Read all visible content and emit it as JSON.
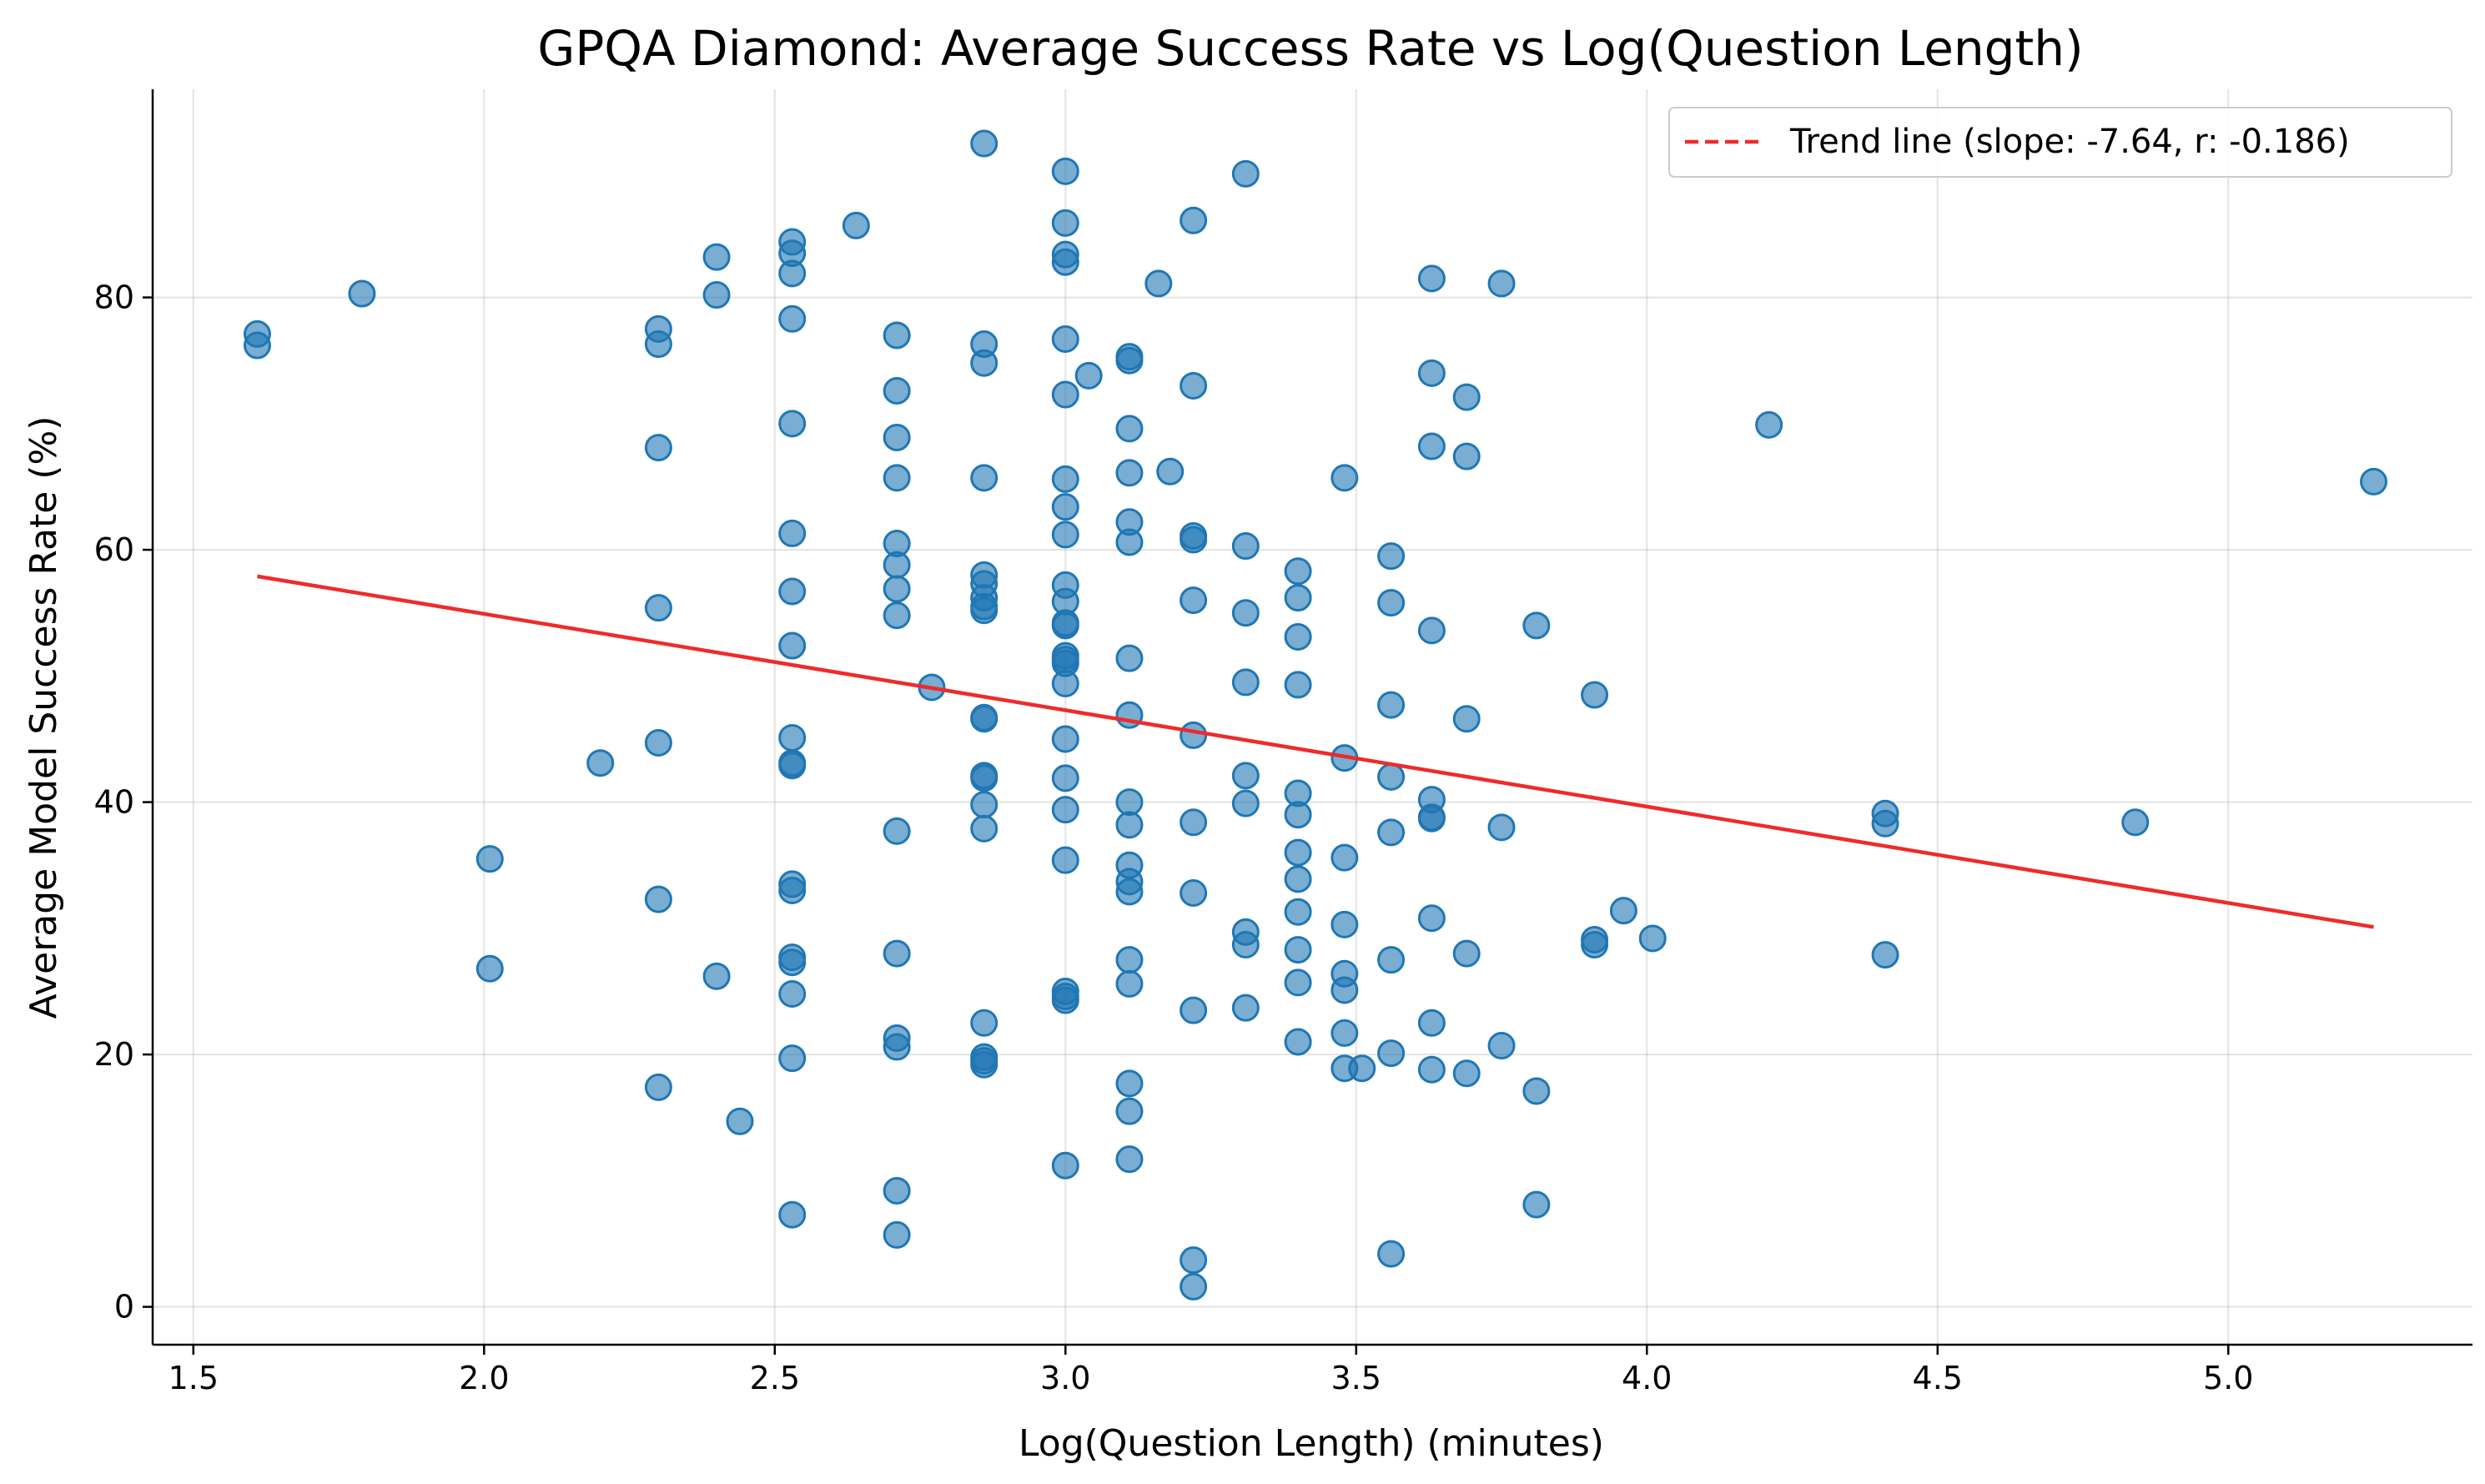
{
  "chart_data": {
    "type": "scatter",
    "title": "GPQA Diamond: Average Success Rate vs Log(Question Length)",
    "xlabel": "Log(Question Length) (minutes)",
    "ylabel": "Average Model Success Rate (%)",
    "xlim": [
      1.43,
      5.42
    ],
    "ylim": [
      -3,
      96.5
    ],
    "xticks": [
      1.5,
      2.0,
      2.5,
      3.0,
      3.5,
      4.0,
      4.5,
      5.0
    ],
    "xtick_labels": [
      "1.5",
      "2.0",
      "2.5",
      "3.0",
      "3.5",
      "4.0",
      "4.5",
      "5.0"
    ],
    "yticks": [
      0,
      20,
      40,
      60,
      80
    ],
    "ytick_labels": [
      "0",
      "20",
      "40",
      "60",
      "80"
    ],
    "grid": true,
    "legend_position": "top-right",
    "colors": {
      "points": "#1f77b4",
      "trend": "#ee2b2b"
    },
    "trend_line": {
      "label": "Trend line (slope: -7.64, r: -0.186)",
      "x": [
        1.61,
        5.25
      ],
      "y": [
        57.9,
        30.1
      ]
    },
    "points": [
      [
        1.61,
        77.1
      ],
      [
        1.61,
        76.2
      ],
      [
        1.79,
        80.3
      ],
      [
        2.01,
        35.5
      ],
      [
        2.01,
        26.8
      ],
      [
        2.2,
        43.1
      ],
      [
        2.3,
        77.5
      ],
      [
        2.3,
        76.3
      ],
      [
        2.3,
        68.1
      ],
      [
        2.3,
        55.4
      ],
      [
        2.3,
        44.7
      ],
      [
        2.3,
        32.3
      ],
      [
        2.3,
        17.4
      ],
      [
        2.4,
        83.2
      ],
      [
        2.4,
        80.2
      ],
      [
        2.4,
        26.2
      ],
      [
        2.44,
        14.7
      ],
      [
        2.53,
        84.4
      ],
      [
        2.53,
        83.5
      ],
      [
        2.53,
        81.9
      ],
      [
        2.53,
        78.3
      ],
      [
        2.53,
        70.0
      ],
      [
        2.53,
        61.3
      ],
      [
        2.53,
        56.7
      ],
      [
        2.53,
        52.4
      ],
      [
        2.53,
        45.1
      ],
      [
        2.53,
        43.1
      ],
      [
        2.53,
        42.9
      ],
      [
        2.53,
        33.5
      ],
      [
        2.53,
        33.0
      ],
      [
        2.53,
        27.7
      ],
      [
        2.53,
        27.3
      ],
      [
        2.53,
        24.8
      ],
      [
        2.53,
        19.7
      ],
      [
        2.53,
        7.3
      ],
      [
        2.64,
        85.7
      ],
      [
        2.71,
        77.0
      ],
      [
        2.71,
        72.6
      ],
      [
        2.71,
        68.9
      ],
      [
        2.71,
        65.7
      ],
      [
        2.71,
        60.5
      ],
      [
        2.71,
        58.8
      ],
      [
        2.71,
        56.9
      ],
      [
        2.71,
        54.8
      ],
      [
        2.71,
        37.7
      ],
      [
        2.71,
        28.0
      ],
      [
        2.71,
        21.3
      ],
      [
        2.71,
        20.6
      ],
      [
        2.71,
        9.2
      ],
      [
        2.71,
        5.7
      ],
      [
        2.77,
        49.1
      ],
      [
        2.86,
        92.2
      ],
      [
        2.86,
        76.3
      ],
      [
        2.86,
        74.8
      ],
      [
        2.86,
        65.7
      ],
      [
        2.86,
        58.0
      ],
      [
        2.86,
        57.3
      ],
      [
        2.86,
        56.2
      ],
      [
        2.86,
        55.5
      ],
      [
        2.86,
        55.2
      ],
      [
        2.86,
        46.7
      ],
      [
        2.86,
        46.6
      ],
      [
        2.86,
        42.1
      ],
      [
        2.86,
        41.9
      ],
      [
        2.86,
        39.8
      ],
      [
        2.86,
        37.9
      ],
      [
        2.86,
        22.5
      ],
      [
        2.86,
        19.8
      ],
      [
        2.86,
        19.5
      ],
      [
        2.86,
        19.2
      ],
      [
        3.0,
        90.0
      ],
      [
        3.0,
        85.9
      ],
      [
        3.0,
        83.4
      ],
      [
        3.0,
        82.8
      ],
      [
        3.0,
        76.7
      ],
      [
        3.0,
        72.3
      ],
      [
        3.0,
        65.6
      ],
      [
        3.0,
        63.4
      ],
      [
        3.0,
        61.2
      ],
      [
        3.0,
        57.2
      ],
      [
        3.0,
        55.9
      ],
      [
        3.0,
        54.2
      ],
      [
        3.0,
        54.0
      ],
      [
        3.0,
        51.6
      ],
      [
        3.0,
        51.3
      ],
      [
        3.0,
        51.0
      ],
      [
        3.0,
        49.4
      ],
      [
        3.0,
        45.0
      ],
      [
        3.0,
        41.9
      ],
      [
        3.0,
        39.4
      ],
      [
        3.0,
        35.4
      ],
      [
        3.0,
        25.0
      ],
      [
        3.0,
        24.6
      ],
      [
        3.0,
        24.3
      ],
      [
        3.0,
        11.2
      ],
      [
        3.04,
        73.8
      ],
      [
        3.11,
        75.3
      ],
      [
        3.11,
        75.0
      ],
      [
        3.11,
        69.6
      ],
      [
        3.11,
        66.1
      ],
      [
        3.11,
        62.2
      ],
      [
        3.11,
        60.6
      ],
      [
        3.11,
        51.4
      ],
      [
        3.11,
        46.9
      ],
      [
        3.11,
        40.0
      ],
      [
        3.11,
        38.2
      ],
      [
        3.11,
        35.0
      ],
      [
        3.11,
        33.7
      ],
      [
        3.11,
        32.9
      ],
      [
        3.11,
        27.5
      ],
      [
        3.11,
        25.6
      ],
      [
        3.11,
        17.7
      ],
      [
        3.11,
        15.5
      ],
      [
        3.11,
        11.7
      ],
      [
        3.18,
        66.2
      ],
      [
        3.16,
        81.1
      ],
      [
        3.22,
        86.1
      ],
      [
        3.22,
        73.0
      ],
      [
        3.22,
        61.1
      ],
      [
        3.22,
        60.8
      ],
      [
        3.22,
        56.0
      ],
      [
        3.22,
        45.3
      ],
      [
        3.22,
        38.4
      ],
      [
        3.22,
        32.8
      ],
      [
        3.22,
        23.5
      ],
      [
        3.22,
        3.7
      ],
      [
        3.22,
        1.6
      ],
      [
        3.31,
        89.8
      ],
      [
        3.31,
        60.3
      ],
      [
        3.31,
        55.0
      ],
      [
        3.31,
        49.5
      ],
      [
        3.31,
        42.1
      ],
      [
        3.31,
        39.9
      ],
      [
        3.31,
        29.7
      ],
      [
        3.31,
        28.7
      ],
      [
        3.31,
        23.7
      ],
      [
        3.4,
        58.3
      ],
      [
        3.4,
        56.2
      ],
      [
        3.4,
        53.1
      ],
      [
        3.4,
        49.3
      ],
      [
        3.4,
        40.7
      ],
      [
        3.4,
        39.0
      ],
      [
        3.4,
        36.0
      ],
      [
        3.4,
        33.9
      ],
      [
        3.4,
        31.3
      ],
      [
        3.4,
        28.3
      ],
      [
        3.4,
        25.7
      ],
      [
        3.4,
        21.0
      ],
      [
        3.48,
        65.7
      ],
      [
        3.48,
        43.5
      ],
      [
        3.48,
        35.6
      ],
      [
        3.48,
        30.3
      ],
      [
        3.48,
        26.4
      ],
      [
        3.48,
        25.1
      ],
      [
        3.48,
        21.7
      ],
      [
        3.48,
        18.9
      ],
      [
        3.51,
        18.9
      ],
      [
        3.56,
        59.5
      ],
      [
        3.56,
        55.8
      ],
      [
        3.56,
        47.7
      ],
      [
        3.56,
        42.0
      ],
      [
        3.56,
        37.6
      ],
      [
        3.56,
        27.5
      ],
      [
        3.56,
        20.1
      ],
      [
        3.56,
        4.2
      ],
      [
        3.63,
        81.5
      ],
      [
        3.63,
        74.0
      ],
      [
        3.63,
        68.2
      ],
      [
        3.63,
        53.6
      ],
      [
        3.63,
        40.2
      ],
      [
        3.63,
        38.8
      ],
      [
        3.63,
        38.7
      ],
      [
        3.63,
        30.8
      ],
      [
        3.63,
        22.5
      ],
      [
        3.63,
        18.8
      ],
      [
        3.69,
        72.1
      ],
      [
        3.69,
        67.4
      ],
      [
        3.69,
        46.6
      ],
      [
        3.69,
        28.0
      ],
      [
        3.69,
        18.5
      ],
      [
        3.75,
        81.1
      ],
      [
        3.75,
        38.0
      ],
      [
        3.75,
        20.7
      ],
      [
        3.81,
        54.0
      ],
      [
        3.81,
        17.1
      ],
      [
        3.81,
        8.1
      ],
      [
        3.91,
        48.5
      ],
      [
        3.91,
        29.1
      ],
      [
        3.91,
        28.7
      ],
      [
        3.96,
        31.4
      ],
      [
        4.01,
        29.2
      ],
      [
        4.21,
        69.9
      ],
      [
        4.41,
        39.1
      ],
      [
        4.41,
        38.3
      ],
      [
        4.41,
        27.9
      ],
      [
        4.84,
        38.4
      ],
      [
        5.25,
        65.4
      ]
    ]
  }
}
